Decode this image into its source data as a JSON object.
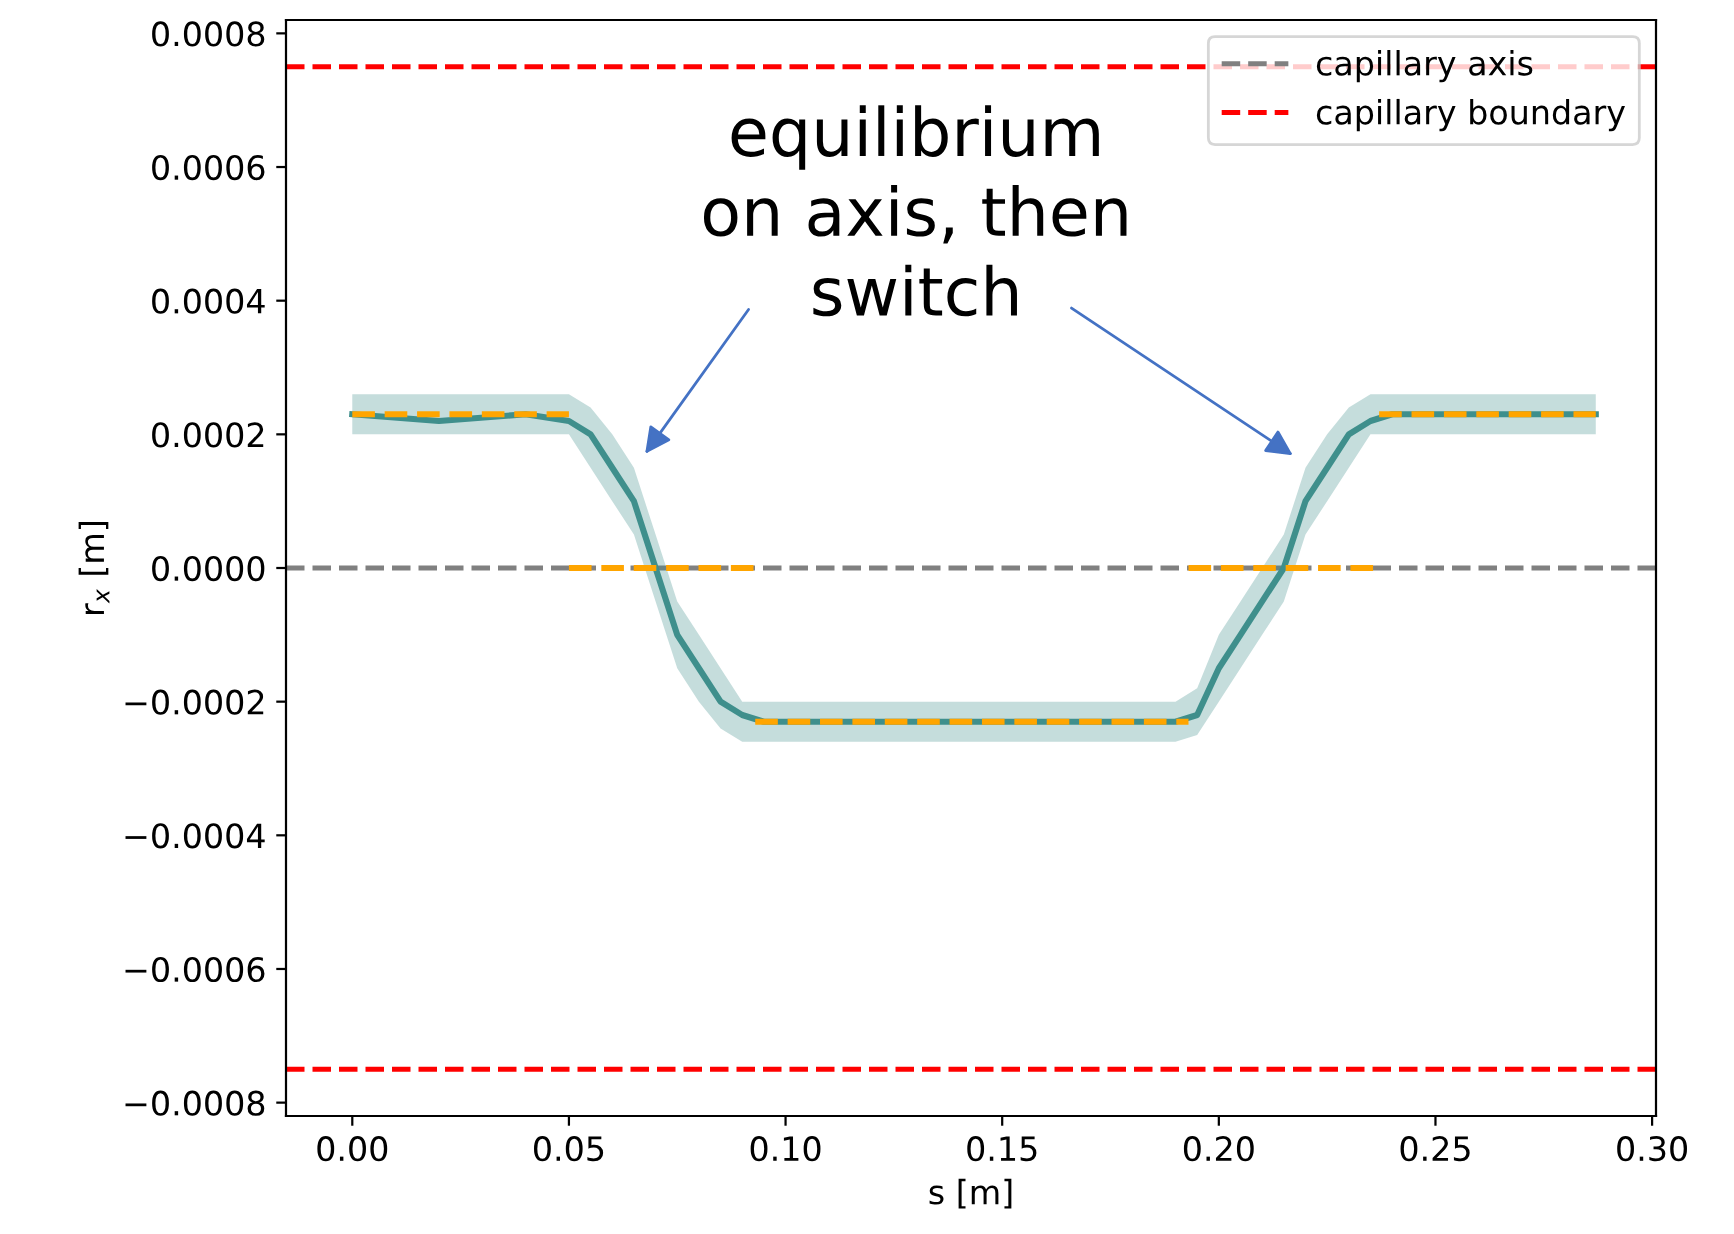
{
  "chart_data": {
    "type": "line",
    "xlabel": "s [m]",
    "ylabel": "r$_{x}$ [m]",
    "xlim": [
      -0.0153,
      0.3009
    ],
    "ylim": [
      -0.00082,
      0.00082
    ],
    "xticks": [
      {
        "value": 0,
        "label": "0.00"
      },
      {
        "value": 0.05,
        "label": "0.05"
      },
      {
        "value": 0.1,
        "label": "0.10"
      },
      {
        "value": 0.15,
        "label": "0.15"
      },
      {
        "value": 0.2,
        "label": "0.20"
      },
      {
        "value": 0.25,
        "label": "0.25"
      },
      {
        "value": 0.3,
        "label": "0.30"
      }
    ],
    "yticks": [
      {
        "value": -0.0008,
        "label": "−0.0008"
      },
      {
        "value": -0.0006,
        "label": "−0.0006"
      },
      {
        "value": -0.0004,
        "label": "−0.0004"
      },
      {
        "value": -0.0002,
        "label": "−0.0002"
      },
      {
        "value": 0,
        "label": "0.0000"
      },
      {
        "value": 0.0002,
        "label": "0.0002"
      },
      {
        "value": 0.0004,
        "label": "0.0004"
      },
      {
        "value": 0.0006,
        "label": "0.0006"
      },
      {
        "value": 0.0008,
        "label": "0.0008"
      }
    ],
    "series": [
      {
        "color": "#3f8f8c",
        "x": [
          0,
          0.02,
          0.04,
          0.05,
          0.055,
          0.06,
          0.065,
          0.07,
          0.075,
          0.08,
          0.085,
          0.09,
          0.095,
          0.12,
          0.15,
          0.18,
          0.19,
          0.195,
          0.2,
          0.205,
          0.21,
          0.215,
          0.22,
          0.225,
          0.23,
          0.235,
          0.24,
          0.26,
          0.287
        ],
        "values": [
          0.00023,
          0.00022,
          0.00023,
          0.00022,
          0.0002,
          0.00015,
          0.0001,
          0,
          -0.0001,
          -0.00015,
          -0.0002,
          -0.00022,
          -0.00023,
          -0.00023,
          -0.00023,
          -0.00023,
          -0.00023,
          -0.00022,
          -0.00015,
          -0.0001,
          -5e-05,
          0,
          0.0001,
          0.00015,
          0.0002,
          0.00022,
          0.00023,
          0.00023,
          0.00023
        ],
        "lower": [
          0.0002,
          0.0002,
          0.0002,
          0.0002,
          0.00015,
          0.0001,
          5e-05,
          -5e-05,
          -0.00015,
          -0.0002,
          -0.00024,
          -0.00026,
          -0.00026,
          -0.00026,
          -0.00026,
          -0.00026,
          -0.00026,
          -0.00025,
          -0.0002,
          -0.00015,
          -0.0001,
          -5e-05,
          5e-05,
          0.0001,
          0.00015,
          0.0002,
          0.0002,
          0.0002,
          0.0002
        ],
        "upper": [
          0.00026,
          0.00026,
          0.00026,
          0.00026,
          0.00024,
          0.0002,
          0.00015,
          5e-05,
          -5e-05,
          -0.0001,
          -0.00015,
          -0.0002,
          -0.0002,
          -0.0002,
          -0.0002,
          -0.0002,
          -0.0002,
          -0.00018,
          -0.0001,
          -5e-05,
          0,
          5e-05,
          0.00015,
          0.0002,
          0.00024,
          0.00026,
          0.00026,
          0.00026,
          0.00026
        ]
      },
      {
        "color": "#ffa500",
        "line_style": "dashed",
        "x": [
          0,
          0.05
        ],
        "values": [
          0.00023,
          0.00023
        ]
      },
      {
        "color": "#ffa500",
        "line_style": "dashed",
        "x": [
          0.05,
          0.093
        ],
        "values": [
          0,
          0
        ]
      },
      {
        "color": "#ffa500",
        "line_style": "dashed",
        "x": [
          0.093,
          0.193
        ],
        "values": [
          -0.00023,
          -0.00023
        ]
      },
      {
        "color": "#ffa500",
        "line_style": "dashed",
        "x": [
          0.193,
          0.237
        ],
        "values": [
          0,
          0
        ]
      },
      {
        "color": "#ffa500",
        "line_style": "dashed",
        "x": [
          0.237,
          0.287
        ],
        "values": [
          0.00023,
          0.00023
        ]
      }
    ],
    "ref_lines": [
      {
        "axis": "y",
        "value": 0,
        "label": "capillary axis",
        "color": "#808080",
        "line_style": "dashed"
      },
      {
        "axis": "y",
        "value": 0.00075,
        "label": "capillary boundary",
        "color": "#ff0000",
        "line_style": "dashed"
      },
      {
        "axis": "y",
        "value": -0.00075,
        "color": "#ff0000",
        "line_style": "dashed"
      }
    ],
    "annotations": [
      "equilibrium\non axis, then\nswitch"
    ],
    "legend": "top right",
    "grid": false
  }
}
